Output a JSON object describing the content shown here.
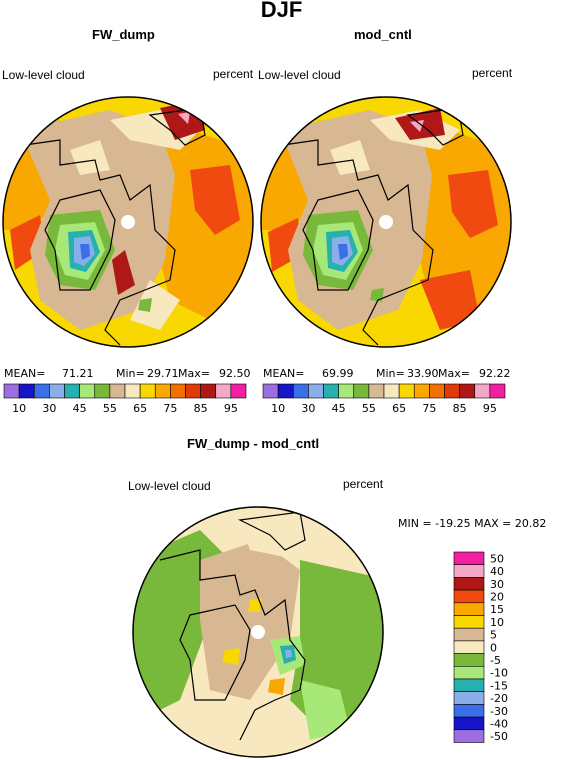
{
  "figure": {
    "title": "DJF"
  },
  "panels": [
    {
      "title": "FW_dump",
      "left_label": "Low-level cloud",
      "right_label": "percent",
      "mean_label": "MEAN=",
      "mean": "71.21",
      "min_label": "Min=",
      "min": "29.71",
      "max_label": "Max=",
      "max": "92.50",
      "colorbar_ticks": [
        "10",
        "30",
        "45",
        "55",
        "65",
        "75",
        "85",
        "95"
      ]
    },
    {
      "title": "mod_cntl",
      "left_label": "Low-level cloud",
      "right_label": "percent",
      "mean_label": "MEAN=",
      "mean": "69.99",
      "min_label": "Min=",
      "min": "33.90",
      "max_label": "Max=",
      "max": "92.22",
      "colorbar_ticks": [
        "10",
        "30",
        "45",
        "55",
        "65",
        "75",
        "85",
        "95"
      ]
    },
    {
      "title": "FW_dump - mod_cntl",
      "left_label": "Low-level cloud",
      "right_label": "percent",
      "stats_text": "MIN = -19.25 MAX =  20.82",
      "colorbar_ticks": [
        "50",
        "40",
        "30",
        "20",
        "15",
        "10",
        "5",
        "0",
        "-5",
        "-10",
        "-15",
        "-20",
        "-30",
        "-40",
        "-50"
      ]
    }
  ],
  "colors": {
    "abs_scale": [
      "#9b6fe0",
      "#1616c8",
      "#3a6fe8",
      "#8aaee8",
      "#26b0b0",
      "#a8e878",
      "#78b83a",
      "#d8b892",
      "#f8e8c0",
      "#f8d800",
      "#f8a800",
      "#f07000",
      "#e03a0a",
      "#b01818",
      "#f4a8c8",
      "#f020a0"
    ],
    "diff_scale": [
      "#f020a0",
      "#f4a8c8",
      "#b01818",
      "#f04a10",
      "#f8a800",
      "#f8d800",
      "#d8b892",
      "#f8e8c0",
      "#78b83a",
      "#a8e878",
      "#26b0b0",
      "#8aaee8",
      "#3a6fe8",
      "#1616c8",
      "#9b6fe0"
    ]
  },
  "chart_data": [
    {
      "type": "heatmap",
      "subtype": "polar stereographic filled contour map",
      "title": "FW_dump",
      "variable": "Low-level cloud",
      "units": "percent",
      "levels": [
        10,
        20,
        30,
        40,
        45,
        50,
        55,
        60,
        65,
        70,
        75,
        80,
        85,
        90,
        95
      ],
      "stats": {
        "mean": 71.21,
        "min": 29.71,
        "max": 92.5
      }
    },
    {
      "type": "heatmap",
      "subtype": "polar stereographic filled contour map",
      "title": "mod_cntl",
      "variable": "Low-level cloud",
      "units": "percent",
      "levels": [
        10,
        20,
        30,
        40,
        45,
        50,
        55,
        60,
        65,
        70,
        75,
        80,
        85,
        90,
        95
      ],
      "stats": {
        "mean": 69.99,
        "min": 33.9,
        "max": 92.22
      }
    },
    {
      "type": "heatmap",
      "subtype": "polar stereographic filled contour map (difference)",
      "title": "FW_dump - mod_cntl",
      "variable": "Low-level cloud",
      "units": "percent",
      "levels": [
        -50,
        -40,
        -30,
        -20,
        -15,
        -10,
        -5,
        0,
        5,
        10,
        15,
        20,
        30,
        40,
        50
      ],
      "stats": {
        "min": -19.25,
        "max": 20.82
      }
    }
  ]
}
